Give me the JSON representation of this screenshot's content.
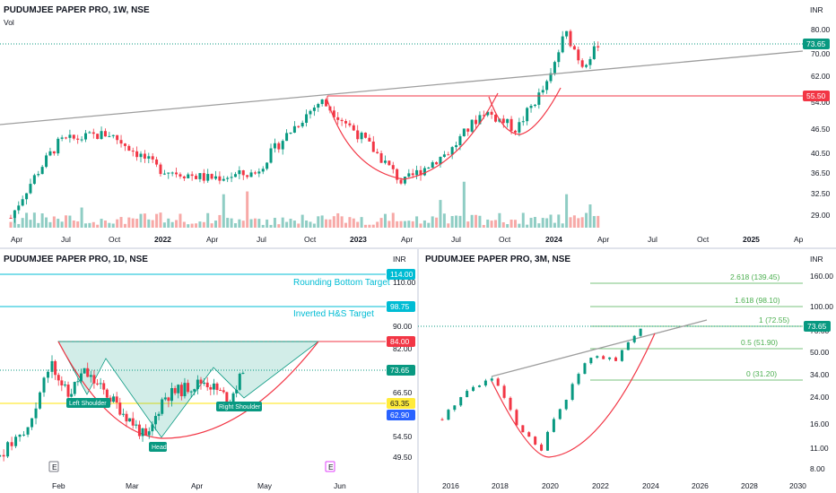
{
  "colors": {
    "up": "#089981",
    "down": "#f23645",
    "volUp": "#8fcdc4",
    "volDown": "#f7a9a7",
    "trend": "#9e9e9e",
    "red": "#f23645",
    "cyan": "#00bcd4",
    "fib": "#4caf50",
    "teal": "#089981",
    "yellow": "#ffeb3b",
    "blue": "#2962ff"
  },
  "panel_top": {
    "title": "PUDUMJEE PAPER PRO, 1W, NSE",
    "indicator": "Vol",
    "currency": "INR",
    "y_ticks": [
      "80.00",
      "70.00",
      "62.00",
      "54.00",
      "46.50",
      "40.50",
      "36.50",
      "32.50",
      "29.00"
    ],
    "x_ticks": [
      "Apr",
      "Jul",
      "Oct",
      "2022",
      "Apr",
      "Jul",
      "Oct",
      "2023",
      "Apr",
      "Jul",
      "Oct",
      "2024",
      "Apr",
      "Jul",
      "Oct",
      "2025",
      "Ap"
    ],
    "badges": [
      "73.65",
      "55.50"
    ]
  },
  "panel_left": {
    "title": "PUDUMJEE PAPER PRO, 1D, NSE",
    "currency": "INR",
    "y_ticks": [
      "110.00",
      "90.00",
      "82.00",
      "66.50",
      "54.50",
      "49.50"
    ],
    "x_ticks": [
      "Feb",
      "Mar",
      "Apr",
      "May",
      "Jun"
    ],
    "badges": [
      "114.00",
      "98.75",
      "84.00",
      "73.65",
      "63.35",
      "62.90"
    ],
    "annotations": {
      "rb_target": "Rounding Bottom Target",
      "hs_target": "Inverted H&S Target"
    },
    "pattern_labels": {
      "left": "Left Shoulder",
      "head": "Head",
      "right": "Right Shoulder"
    },
    "event_markers": [
      "E",
      "E"
    ]
  },
  "panel_right": {
    "title": "PUDUMJEE PAPER PRO, 3M, NSE",
    "currency": "INR",
    "y_ticks": [
      "160.00",
      "100.00",
      "70.00",
      "50.00",
      "34.00",
      "24.00",
      "16.00",
      "11.00",
      "8.00"
    ],
    "x_ticks": [
      "2016",
      "2018",
      "2020",
      "2022",
      "2024",
      "2026",
      "2028",
      "2030"
    ],
    "fib_levels": [
      "2.618 (139.45)",
      "1.618 (98.10)",
      "1 (72.55)",
      "0.5 (51.90)",
      "0 (31.20)"
    ],
    "badge": "73.65"
  },
  "chart_data": [
    {
      "type": "candlestick",
      "title": "PUDUMJEE PAPER PRO, 1W, NSE",
      "timeframe": "1W",
      "price_unit": "INR",
      "y_axis_ticks": [
        29.0,
        32.5,
        36.5,
        40.5,
        46.5,
        54.0,
        62.0,
        70.0,
        80.0
      ],
      "log_scale": true,
      "x_range": [
        "2021-04",
        "2025-04"
      ],
      "key_points": [
        {
          "date": "2021-04",
          "close": 29
        },
        {
          "date": "2021-07",
          "close": 44
        },
        {
          "date": "2021-10",
          "close": 46
        },
        {
          "date": "2022-01",
          "close": 38
        },
        {
          "date": "2022-04",
          "close": 36
        },
        {
          "date": "2022-07",
          "close": 37
        },
        {
          "date": "2022-11",
          "close": 55
        },
        {
          "date": "2023-04",
          "close": 35
        },
        {
          "date": "2023-07",
          "close": 42
        },
        {
          "date": "2023-09",
          "close": 52
        },
        {
          "date": "2023-11",
          "close": 47
        },
        {
          "date": "2024-01",
          "close": 61
        },
        {
          "date": "2024-02",
          "close": 80
        },
        {
          "date": "2024-03",
          "close": 67
        },
        {
          "date": "2024-04",
          "close": 73.65
        }
      ],
      "last_price": 73.65,
      "horizontal_levels": [
        55.5
      ]
    },
    {
      "type": "candlestick",
      "title": "PUDUMJEE PAPER PRO, 1D, NSE",
      "timeframe": "1D",
      "price_unit": "INR",
      "y_axis_ticks": [
        49.5,
        54.5,
        66.5,
        82.0,
        90.0,
        110.0
      ],
      "x_range": [
        "2024-01",
        "2024-06"
      ],
      "key_points": [
        {
          "date": "2024-02-01",
          "close": 77
        },
        {
          "date": "2024-02-08",
          "close": 66
        },
        {
          "date": "2024-02-15",
          "close": 74
        },
        {
          "date": "2024-03-13",
          "close": 54
        },
        {
          "date": "2024-03-20",
          "close": 66
        },
        {
          "date": "2024-04-08",
          "close": 71
        },
        {
          "date": "2024-04-19",
          "close": 65
        },
        {
          "date": "2024-04-25",
          "close": 73.65
        }
      ],
      "levels": {
        "rounding_bottom_target": 114.0,
        "inverted_hs_target": 98.75,
        "resistance": 84.0,
        "last": 73.65,
        "neckline": 63.35,
        "support": 62.9
      }
    },
    {
      "type": "candlestick",
      "title": "PUDUMJEE PAPER PRO, 3M, NSE",
      "timeframe": "3M",
      "price_unit": "INR",
      "y_axis_ticks": [
        8,
        11,
        16,
        24,
        34,
        50,
        70,
        100,
        160
      ],
      "log_scale": true,
      "x_range": [
        "2015",
        "2030"
      ],
      "key_points": [
        {
          "date": "2016",
          "close": 18
        },
        {
          "date": "2017",
          "close": 28
        },
        {
          "date": "2018",
          "close": 34
        },
        {
          "date": "2019",
          "close": 16
        },
        {
          "date": "2020",
          "close": 11
        },
        {
          "date": "2021",
          "close": 25
        },
        {
          "date": "2022",
          "close": 48
        },
        {
          "date": "2023",
          "close": 45
        },
        {
          "date": "2024",
          "close": 73.65
        }
      ],
      "fibonacci": [
        {
          "ratio": "0",
          "value": 31.2
        },
        {
          "ratio": "0.5",
          "value": 51.9
        },
        {
          "ratio": "1",
          "value": 72.55
        },
        {
          "ratio": "1.618",
          "value": 98.1
        },
        {
          "ratio": "2.618",
          "value": 139.45
        }
      ]
    }
  ]
}
